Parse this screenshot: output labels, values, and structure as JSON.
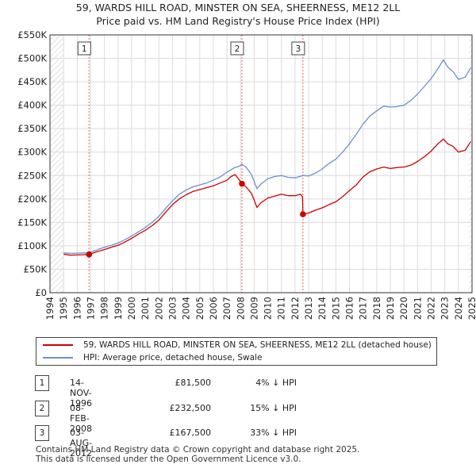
{
  "title_line1": "59, WARDS HILL ROAD, MINSTER ON SEA, SHEERNESS, ME12 2LL",
  "title_line2": "Price paid vs. HM Land Registry's House Price Index (HPI)",
  "chart_data": {
    "type": "line",
    "title": "59, WARDS HILL ROAD, MINSTER ON SEA, SHEERNESS, ME12 2LL — Price paid vs. HM Land Registry's House Price Index (HPI)",
    "xlabel": "",
    "ylabel": "",
    "xlim": [
      1994,
      2025
    ],
    "ylim": [
      0,
      550000
    ],
    "x_ticks": [
      "1994",
      "1995",
      "1996",
      "1997",
      "1998",
      "1999",
      "2000",
      "2001",
      "2002",
      "2003",
      "2004",
      "2005",
      "2006",
      "2007",
      "2008",
      "2009",
      "2010",
      "2011",
      "2012",
      "2013",
      "2014",
      "2015",
      "2016",
      "2017",
      "2018",
      "2019",
      "2020",
      "2021",
      "2022",
      "2023",
      "2024",
      "2025"
    ],
    "y_ticks": [
      {
        "v": 0,
        "label": "£0"
      },
      {
        "v": 50000,
        "label": "£50K"
      },
      {
        "v": 100000,
        "label": "£100K"
      },
      {
        "v": 150000,
        "label": "£150K"
      },
      {
        "v": 200000,
        "label": "£200K"
      },
      {
        "v": 250000,
        "label": "£250K"
      },
      {
        "v": 300000,
        "label": "£300K"
      },
      {
        "v": 350000,
        "label": "£350K"
      },
      {
        "v": 400000,
        "label": "£400K"
      },
      {
        "v": 450000,
        "label": "£450K"
      },
      {
        "v": 500000,
        "label": "£500K"
      },
      {
        "v": 550000,
        "label": "£550K"
      }
    ],
    "grid": true,
    "hatched_ranges": [
      [
        1994,
        1995.0
      ],
      [
        2024.8,
        2025
      ]
    ],
    "series": [
      {
        "name": "59, WARDS HILL ROAD, MINSTER ON SEA, SHEERNESS, ME12 2LL (detached house)",
        "color": "#cc0000",
        "points": [
          [
            1995.0,
            82000
          ],
          [
            1995.5,
            80000
          ],
          [
            1996.0,
            80500
          ],
          [
            1996.5,
            81000
          ],
          [
            1996.87,
            81500
          ],
          [
            1997.5,
            88000
          ],
          [
            1998,
            92000
          ],
          [
            1998.5,
            97000
          ],
          [
            1999,
            101000
          ],
          [
            1999.5,
            108000
          ],
          [
            2000,
            116000
          ],
          [
            2000.5,
            125000
          ],
          [
            2001,
            133000
          ],
          [
            2001.5,
            143000
          ],
          [
            2002,
            155000
          ],
          [
            2002.5,
            172000
          ],
          [
            2003,
            188000
          ],
          [
            2003.5,
            200000
          ],
          [
            2004,
            209000
          ],
          [
            2004.5,
            216000
          ],
          [
            2005,
            220000
          ],
          [
            2005.5,
            224000
          ],
          [
            2006,
            228000
          ],
          [
            2006.5,
            234000
          ],
          [
            2007,
            240000
          ],
          [
            2007.3,
            248000
          ],
          [
            2007.6,
            252000
          ],
          [
            2007.9,
            241000
          ],
          [
            2008.1,
            232500
          ],
          [
            2008.4,
            226000
          ],
          [
            2008.8,
            212000
          ],
          [
            2009.2,
            182000
          ],
          [
            2009.5,
            192000
          ],
          [
            2010,
            202000
          ],
          [
            2010.5,
            206000
          ],
          [
            2011,
            210000
          ],
          [
            2011.5,
            207000
          ],
          [
            2012,
            207000
          ],
          [
            2012.4,
            210000
          ],
          [
            2012.55,
            205000
          ],
          [
            2012.58,
            167500
          ],
          [
            2013,
            170000
          ],
          [
            2013.5,
            176000
          ],
          [
            2014,
            181000
          ],
          [
            2014.5,
            188000
          ],
          [
            2015,
            194000
          ],
          [
            2015.5,
            205000
          ],
          [
            2016,
            218000
          ],
          [
            2016.5,
            230000
          ],
          [
            2017,
            247000
          ],
          [
            2017.5,
            258000
          ],
          [
            2018,
            264000
          ],
          [
            2018.5,
            268000
          ],
          [
            2019,
            265000
          ],
          [
            2019.5,
            267000
          ],
          [
            2020,
            268000
          ],
          [
            2020.5,
            272000
          ],
          [
            2021,
            280000
          ],
          [
            2021.5,
            290000
          ],
          [
            2022,
            302000
          ],
          [
            2022.5,
            318000
          ],
          [
            2022.9,
            328000
          ],
          [
            2023.2,
            318000
          ],
          [
            2023.6,
            312000
          ],
          [
            2024,
            300000
          ],
          [
            2024.5,
            304000
          ],
          [
            2024.9,
            322000
          ]
        ]
      },
      {
        "name": "HPI: Average price, detached house, Swale",
        "color": "#6b8fd0",
        "points": [
          [
            1995.0,
            85000
          ],
          [
            1995.5,
            84000
          ],
          [
            1996,
            84500
          ],
          [
            1996.5,
            85000
          ],
          [
            1996.87,
            85000
          ],
          [
            1997.5,
            92000
          ],
          [
            1998,
            97000
          ],
          [
            1998.5,
            101000
          ],
          [
            1999,
            106000
          ],
          [
            1999.5,
            113000
          ],
          [
            2000,
            121000
          ],
          [
            2000.5,
            130000
          ],
          [
            2001,
            139000
          ],
          [
            2001.5,
            150000
          ],
          [
            2002,
            163000
          ],
          [
            2002.5,
            180000
          ],
          [
            2003,
            196000
          ],
          [
            2003.5,
            210000
          ],
          [
            2004,
            219000
          ],
          [
            2004.5,
            226000
          ],
          [
            2005,
            230000
          ],
          [
            2005.5,
            234000
          ],
          [
            2006,
            240000
          ],
          [
            2006.5,
            247000
          ],
          [
            2007,
            257000
          ],
          [
            2007.5,
            266000
          ],
          [
            2007.9,
            270000
          ],
          [
            2008.1,
            274000
          ],
          [
            2008.4,
            268000
          ],
          [
            2008.8,
            252000
          ],
          [
            2009.2,
            222000
          ],
          [
            2009.5,
            232000
          ],
          [
            2010,
            243000
          ],
          [
            2010.5,
            248000
          ],
          [
            2011,
            250000
          ],
          [
            2011.5,
            246000
          ],
          [
            2012,
            245000
          ],
          [
            2012.58,
            250000
          ],
          [
            2013,
            249000
          ],
          [
            2013.5,
            255000
          ],
          [
            2014,
            264000
          ],
          [
            2014.5,
            276000
          ],
          [
            2015,
            285000
          ],
          [
            2015.5,
            300000
          ],
          [
            2016,
            318000
          ],
          [
            2016.5,
            338000
          ],
          [
            2017,
            360000
          ],
          [
            2017.5,
            377000
          ],
          [
            2018,
            388000
          ],
          [
            2018.5,
            398000
          ],
          [
            2019,
            396000
          ],
          [
            2019.5,
            397000
          ],
          [
            2020,
            400000
          ],
          [
            2020.5,
            410000
          ],
          [
            2021,
            424000
          ],
          [
            2021.5,
            440000
          ],
          [
            2022,
            457000
          ],
          [
            2022.5,
            478000
          ],
          [
            2022.9,
            497000
          ],
          [
            2023.2,
            482000
          ],
          [
            2023.6,
            472000
          ],
          [
            2024,
            455000
          ],
          [
            2024.5,
            460000
          ],
          [
            2024.9,
            480000
          ]
        ]
      }
    ],
    "sales": [
      {
        "label": "1",
        "x": 1996.87,
        "price": 81500
      },
      {
        "label": "2",
        "x": 2008.1,
        "price": 232500
      },
      {
        "label": "3",
        "x": 2012.58,
        "price": 167500
      }
    ]
  },
  "legend": {
    "property_label": "59, WARDS HILL ROAD, MINSTER ON SEA, SHEERNESS, ME12 2LL (detached house)",
    "hpi_label": "HPI: Average price, detached house, Swale",
    "property_color": "#cc0000",
    "hpi_color": "#6b8fd0"
  },
  "transactions": [
    {
      "num": "1",
      "date": "14-NOV-1996",
      "price": "£81,500",
      "hpi": "4% ↓ HPI"
    },
    {
      "num": "2",
      "date": "08-FEB-2008",
      "price": "£232,500",
      "hpi": "15% ↓ HPI"
    },
    {
      "num": "3",
      "date": "03-AUG-2012",
      "price": "£167,500",
      "hpi": "33% ↓ HPI"
    }
  ],
  "footer": {
    "line1": "Contains HM Land Registry data © Crown copyright and database right 2025.",
    "line2": "This data is licensed under the Open Government Licence v3.0."
  }
}
